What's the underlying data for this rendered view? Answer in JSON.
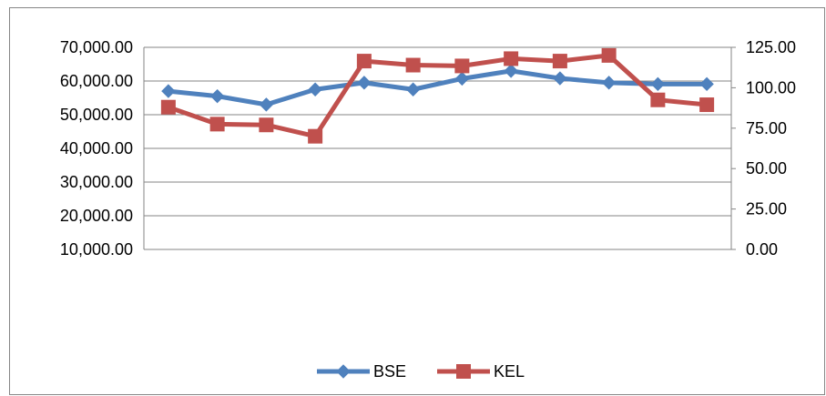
{
  "chart_data": {
    "type": "line",
    "title": "",
    "xlabel": "",
    "ylabel": "",
    "x": [
      1,
      2,
      3,
      4,
      5,
      6,
      7,
      8,
      9,
      10,
      11,
      12
    ],
    "y_left_ticks": [
      "70,000.00",
      "60,000.00",
      "50,000.00",
      "40,000.00",
      "30,000.00",
      "20,000.00",
      "10,000.00"
    ],
    "y_right_ticks": [
      "125.00",
      "100.00",
      "75.00",
      "50.00",
      "25.00",
      "0.00"
    ],
    "ylim_left": [
      10000,
      70000
    ],
    "ylim_right": [
      0,
      125
    ],
    "grid": true,
    "legend_position": "bottom",
    "series": [
      {
        "name": "BSE",
        "axis": "left",
        "color": "#4F81BD",
        "marker": "diamond",
        "values": [
          57000,
          55500,
          53000,
          57500,
          59500,
          57500,
          60700,
          63000,
          60800,
          59500,
          59100,
          59100
        ]
      },
      {
        "name": "KEL",
        "axis": "right",
        "color": "#C0504D",
        "marker": "square",
        "values": [
          88,
          77.5,
          77,
          70,
          116.5,
          114,
          113.5,
          118,
          116.5,
          120,
          92.5,
          89.5
        ]
      }
    ]
  }
}
